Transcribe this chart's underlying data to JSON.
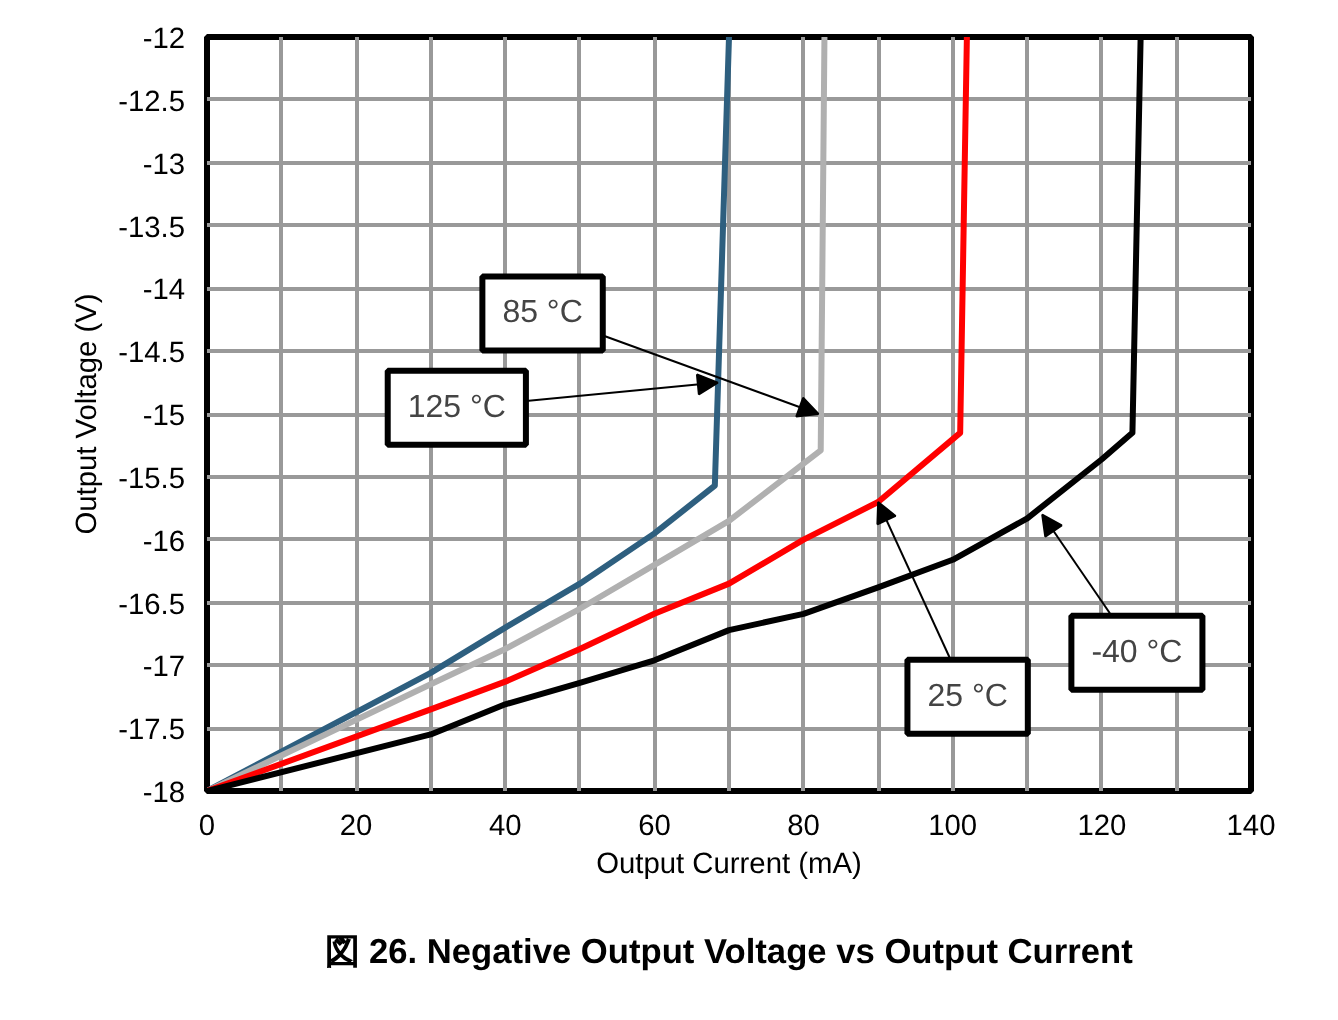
{
  "chart_data": {
    "type": "line",
    "title": "図 26. Negative Output Voltage vs Output Current",
    "xlabel": "Output Current (mA)",
    "ylabel": "Output Voltage (V)",
    "xlim": [
      0,
      140
    ],
    "xticks": [
      0,
      20,
      40,
      60,
      80,
      100,
      120,
      140
    ],
    "ylim": [
      -18,
      -12
    ],
    "yticks": [
      -18,
      -17.5,
      -17,
      -16.5,
      -16,
      -15.5,
      -15,
      -14.5,
      -14,
      -13.5,
      -13,
      -12.5,
      -12
    ],
    "grid": true,
    "line_style": "solid",
    "series": [
      {
        "color": "#2e5f7f",
        "x": [
          0,
          30,
          40,
          50,
          60,
          68.1,
          70
        ],
        "values": [
          -18,
          -17.06,
          -16.7,
          -16.35,
          -15.95,
          -15.57,
          -12
        ]
      },
      {
        "color": "#b0b0b0",
        "x": [
          0,
          30,
          40,
          50,
          60,
          70,
          82.3,
          82.8
        ],
        "values": [
          -18,
          -17.15,
          -16.87,
          -16.55,
          -16.2,
          -15.85,
          -15.29,
          -12
        ]
      },
      {
        "color": "#ff0000",
        "x": [
          0,
          30,
          40,
          50,
          60,
          70,
          80,
          90,
          101,
          101.9
        ],
        "values": [
          -18,
          -17.35,
          -17.13,
          -16.87,
          -16.59,
          -16.35,
          -16.0,
          -15.7,
          -15.15,
          -12
        ]
      },
      {
        "color": "#000000",
        "x": [
          0,
          30,
          40,
          50,
          60,
          70,
          80,
          90,
          100,
          110,
          120,
          124.1,
          125.2
        ],
        "values": [
          -18,
          -17.55,
          -17.31,
          -17.14,
          -16.96,
          -16.72,
          -16.59,
          -16.38,
          -16.16,
          -15.83,
          -15.36,
          -15.15,
          -12
        ]
      }
    ],
    "annotations": [
      {
        "text": "125 °C",
        "x": 68.5,
        "y": -14.75
      },
      {
        "text": "85 °C",
        "x": 82,
        "y": -15.0
      },
      {
        "text": "25 °C",
        "x": 90,
        "y": -15.7
      },
      {
        "text": "-40 °C",
        "x": 112,
        "y": -15.8
      }
    ]
  }
}
